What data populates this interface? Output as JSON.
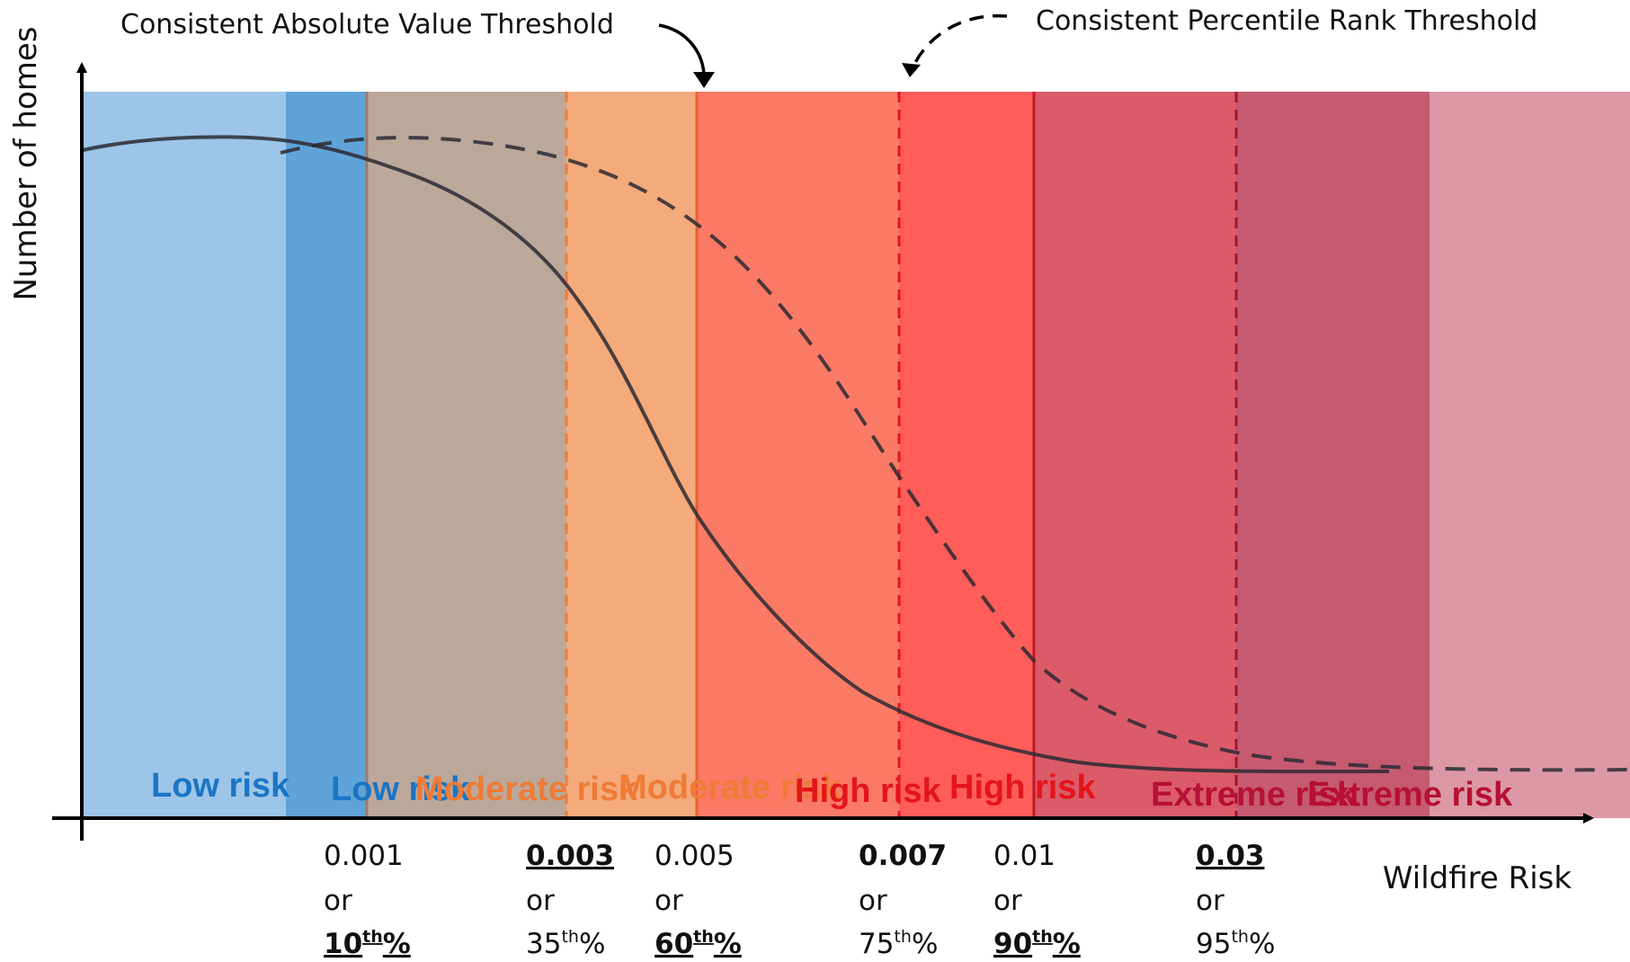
{
  "annotations": {
    "absolute": "Consistent Absolute Value Threshold",
    "percentile": "Consistent Percentile Rank Threshold"
  },
  "axes": {
    "y_label": "Number of homes",
    "x_label": "Wildfire Risk"
  },
  "legend_lines": {
    "absolute": "solid",
    "percentile": "dashed"
  },
  "bands": [
    {
      "id": "low-a",
      "color": "#9cc5e8"
    },
    {
      "id": "low-b",
      "color": "#5fa3d8"
    },
    {
      "id": "moderate-a",
      "color": "#bba89b"
    },
    {
      "id": "moderate-b",
      "color": "#f4aa7b"
    },
    {
      "id": "high-a",
      "color": "#fa7a66"
    },
    {
      "id": "high-b",
      "color": "#fe5d5a"
    },
    {
      "id": "extreme-a",
      "color": "#db5b69"
    },
    {
      "id": "extreme-b",
      "color": "#c55a70"
    },
    {
      "id": "extreme-c",
      "color": "#dc98a6"
    }
  ],
  "risk_labels": [
    {
      "text": "Low risk",
      "color": "#1b75c4"
    },
    {
      "text": "Low risk",
      "color": "#1b75c4"
    },
    {
      "text": "Moderate risk",
      "color": "#ef7b36"
    },
    {
      "text": "Moderate risk",
      "color": "#ef7b36"
    },
    {
      "text": "High risk",
      "color": "#e5141b"
    },
    {
      "text": "High risk",
      "color": "#e5141b"
    },
    {
      "text": "Extreme risk",
      "color": "#b71033"
    },
    {
      "text": "Extreme risk",
      "color": "#b71033"
    }
  ],
  "thresholds": [
    {
      "value": "0.001",
      "value_style": "normal",
      "or": "or",
      "pct": "10",
      "sup": "th",
      "pct_suffix": "%",
      "pct_style": "bold-underline",
      "color": "#9b7b68",
      "dash": "solid"
    },
    {
      "value": "0.003",
      "value_style": "bold-underline",
      "or": "or",
      "pct": "35",
      "sup": "th",
      "pct_suffix": "%",
      "pct_style": "normal",
      "color": "#ef7b36",
      "dash": "dashed"
    },
    {
      "value": "0.005",
      "value_style": "normal",
      "or": "or",
      "pct": "60",
      "sup": "th",
      "pct_suffix": "%",
      "pct_style": "bold-underline",
      "color": "#e8612e",
      "dash": "solid"
    },
    {
      "value": "0.007",
      "value_style": "bold",
      "or": "or",
      "pct": "75",
      "sup": "th",
      "pct_suffix": "%",
      "pct_style": "normal",
      "color": "#e5141b",
      "dash": "dashed"
    },
    {
      "value": "0.01",
      "value_style": "normal",
      "or": "or",
      "pct": "90",
      "sup": "th",
      "pct_suffix": "%",
      "pct_style": "bold-underline",
      "color": "#c0182a",
      "dash": "solid"
    },
    {
      "value": "0.03",
      "value_style": "bold-underline",
      "or": "or",
      "pct": "95",
      "sup": "th",
      "pct_suffix": "%",
      "pct_style": "normal",
      "color": "#a61234",
      "dash": "dashed"
    }
  ]
}
